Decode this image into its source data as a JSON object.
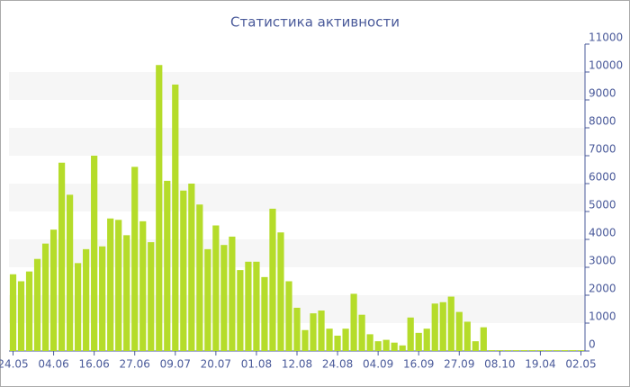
{
  "chart_data": {
    "type": "bar",
    "title": "Статистика активности",
    "categories": [
      "24.05",
      null,
      null,
      null,
      null,
      "04.06",
      null,
      null,
      null,
      null,
      "16.06",
      null,
      null,
      null,
      null,
      "27.06",
      null,
      null,
      null,
      null,
      "09.07",
      null,
      null,
      null,
      null,
      "20.07",
      null,
      null,
      null,
      null,
      "01.08",
      null,
      null,
      null,
      null,
      "12.08",
      null,
      null,
      null,
      null,
      "24.08",
      null,
      null,
      null,
      null,
      "04.09",
      null,
      null,
      null,
      null,
      "16.09",
      null,
      null,
      null,
      null,
      "27.09",
      null,
      null,
      null,
      null,
      "08.10",
      null,
      null,
      null,
      null,
      "19.04",
      null,
      null,
      null,
      null,
      "02.05"
    ],
    "values": [
      2750,
      2500,
      2850,
      3300,
      3850,
      4350,
      6750,
      5600,
      3150,
      3650,
      7000,
      3750,
      4750,
      4700,
      4150,
      6600,
      4650,
      3900,
      10250,
      6100,
      9550,
      5750,
      6000,
      5250,
      3650,
      4500,
      3800,
      4100,
      2900,
      3200,
      3200,
      2650,
      5100,
      4250,
      2500,
      1550,
      750,
      1350,
      1450,
      800,
      550,
      800,
      2050,
      1300,
      600,
      350,
      400,
      300,
      200,
      1200,
      650,
      800,
      1700,
      1750,
      1950,
      1400,
      1050,
      350,
      850,
      30,
      30,
      30,
      30,
      30,
      30,
      30,
      30,
      30,
      30,
      30,
      30
    ],
    "color": "#b5dc2a",
    "ylim": [
      0,
      11000
    ],
    "yticks": [
      0,
      1000,
      2000,
      3000,
      4000,
      5000,
      6000,
      7000,
      8000,
      9000,
      10000,
      11000
    ],
    "bands": true
  }
}
